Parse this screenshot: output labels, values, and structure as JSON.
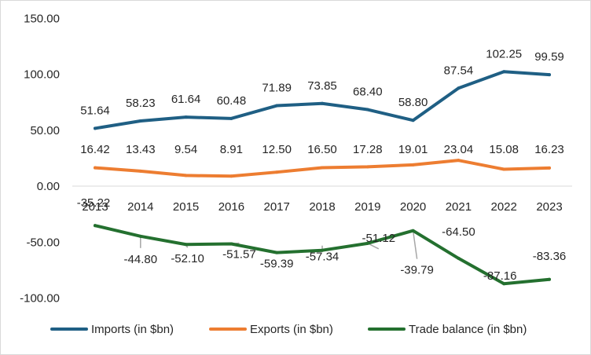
{
  "chart_data": {
    "type": "line",
    "title": "",
    "xlabel": "",
    "ylabel": "",
    "categories": [
      "2013",
      "2014",
      "2015",
      "2016",
      "2017",
      "2018",
      "2019",
      "2020",
      "2021",
      "2022",
      "2023"
    ],
    "ylim": [
      -100,
      150
    ],
    "yticks": [
      -100,
      -50,
      0,
      50,
      100,
      150
    ],
    "ytick_labels": [
      "-100.00",
      "-50.00",
      "0.00",
      "50.00",
      "100.00",
      "150.00"
    ],
    "grid": false,
    "legend_position": "bottom",
    "series": [
      {
        "name": "Imports (in $bn)",
        "color": "#1f5f84",
        "values": [
          51.64,
          58.23,
          61.64,
          60.48,
          71.89,
          73.85,
          68.4,
          58.8,
          87.54,
          102.25,
          99.59
        ],
        "labels": [
          "51.64",
          "58.23",
          "61.64",
          "60.48",
          "71.89",
          "73.85",
          "68.40",
          "58.80",
          "87.54",
          "102.25",
          "99.59"
        ]
      },
      {
        "name": "Exports (in $bn)",
        "color": "#ed7d31",
        "values": [
          16.42,
          13.43,
          9.54,
          8.91,
          12.5,
          16.5,
          17.28,
          19.01,
          23.04,
          15.08,
          16.23
        ],
        "labels": [
          "16.42",
          "13.43",
          "9.54",
          "8.91",
          "12.50",
          "16.50",
          "17.28",
          "19.01",
          "23.04",
          "15.08",
          "16.23"
        ]
      },
      {
        "name": "Trade balance (in $bn)",
        "color": "#24702f",
        "values": [
          -35.22,
          -44.8,
          -52.1,
          -51.57,
          -59.39,
          -57.34,
          -51.12,
          -39.79,
          -64.5,
          -87.16,
          -83.36
        ],
        "labels": [
          "-35.22",
          "-44.80",
          "-52.10",
          "-51.57",
          "-59.39",
          "-57.34",
          "-51.12",
          "-39.79",
          "-64.50",
          "-87.16",
          "-83.36"
        ]
      }
    ]
  }
}
